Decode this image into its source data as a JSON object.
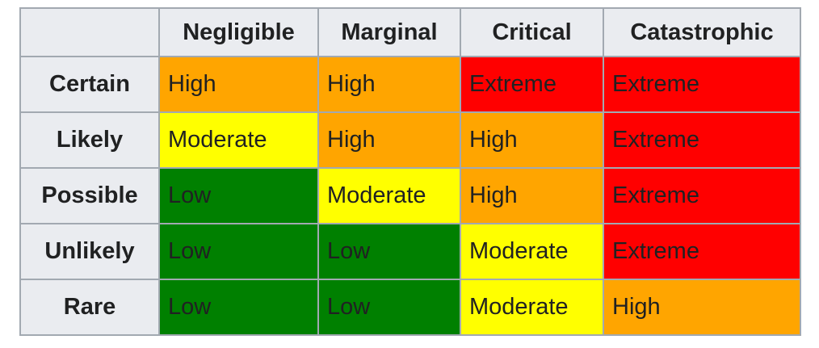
{
  "chart_data": {
    "type": "heatmap",
    "x_categories": [
      "Negligible",
      "Marginal",
      "Critical",
      "Catastrophic"
    ],
    "y_categories": [
      "Certain",
      "Likely",
      "Possible",
      "Unlikely",
      "Rare"
    ],
    "cell_values": [
      [
        "High",
        "High",
        "Extreme",
        "Extreme"
      ],
      [
        "Moderate",
        "High",
        "High",
        "Extreme"
      ],
      [
        "Low",
        "Moderate",
        "High",
        "Extreme"
      ],
      [
        "Low",
        "Low",
        "Moderate",
        "Extreme"
      ],
      [
        "Low",
        "Low",
        "Moderate",
        "High"
      ]
    ],
    "level_colors": {
      "Low": "#008000",
      "Moderate": "#FFFF00",
      "High": "#FFA500",
      "Extreme": "#FF0000"
    },
    "corner_label": "",
    "layout": {
      "header_background": "#eaecf0",
      "border_color": "#a2a9b1",
      "text_color": "#202122",
      "page_background": "#ffffff"
    }
  }
}
